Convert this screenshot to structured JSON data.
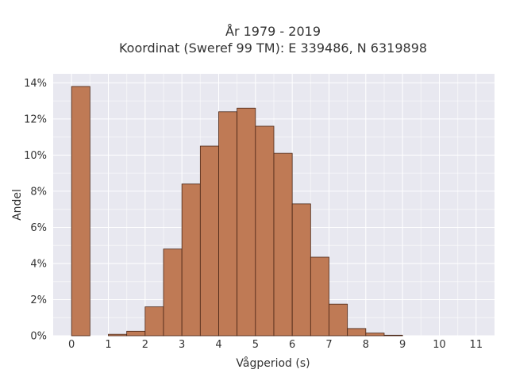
{
  "chart_data": {
    "type": "bar",
    "title": [
      "År 1979 - 2019",
      "Koordinat (Sweref 99 TM): E 339486, N 6319898"
    ],
    "xlabel": "Vågperiod (s)",
    "ylabel": "Andel",
    "xlim": [
      -0.5,
      11.5
    ],
    "ylim": [
      0,
      14.5
    ],
    "x_ticks": [
      0,
      1,
      2,
      3,
      4,
      5,
      6,
      7,
      8,
      9,
      10,
      11
    ],
    "y_ticks": [
      0,
      2,
      4,
      6,
      8,
      10,
      12,
      14
    ],
    "y_tick_labels": [
      "0%",
      "2%",
      "4%",
      "6%",
      "8%",
      "10%",
      "12%",
      "14%"
    ],
    "bin_width": 0.5,
    "bins": [
      {
        "x0": 0.0,
        "value": 13.8
      },
      {
        "x0": 1.0,
        "value": 0.08
      },
      {
        "x0": 1.5,
        "value": 0.25
      },
      {
        "x0": 2.0,
        "value": 1.6
      },
      {
        "x0": 2.5,
        "value": 4.8
      },
      {
        "x0": 3.0,
        "value": 8.4
      },
      {
        "x0": 3.5,
        "value": 10.5
      },
      {
        "x0": 4.0,
        "value": 12.4
      },
      {
        "x0": 4.5,
        "value": 12.6
      },
      {
        "x0": 5.0,
        "value": 11.6
      },
      {
        "x0": 5.5,
        "value": 10.1
      },
      {
        "x0": 6.0,
        "value": 7.3
      },
      {
        "x0": 6.5,
        "value": 4.35
      },
      {
        "x0": 7.0,
        "value": 1.75
      },
      {
        "x0": 7.5,
        "value": 0.4
      },
      {
        "x0": 8.0,
        "value": 0.15
      },
      {
        "x0": 8.5,
        "value": 0.03
      }
    ],
    "grid": true,
    "bar_color": "#bf7a55",
    "plot_background": "#e8e8f0"
  }
}
